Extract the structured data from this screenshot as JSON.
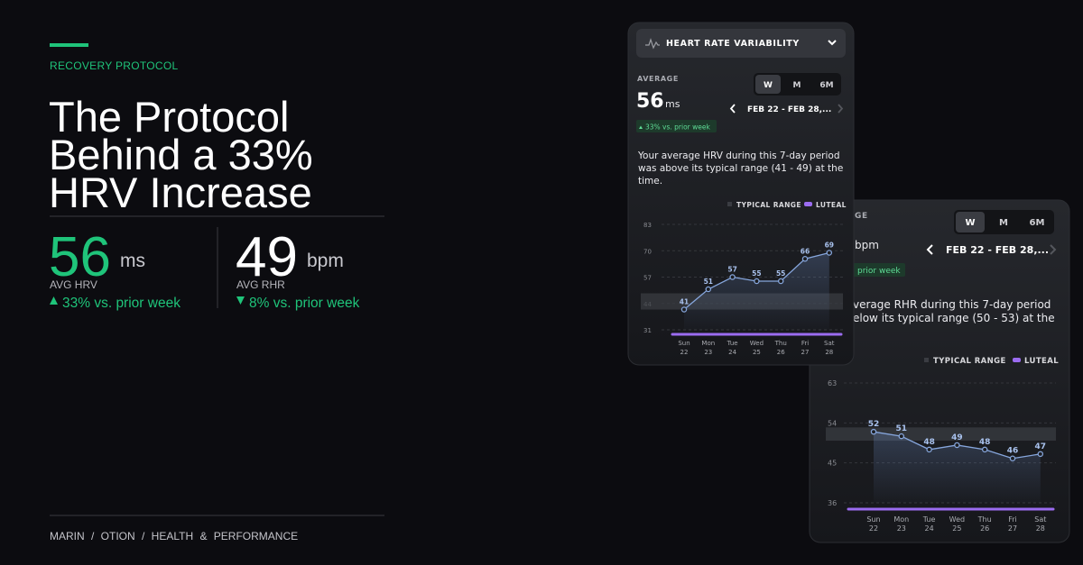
{
  "eyebrow": "RECOVERY PROTOCOL",
  "headline": [
    "The Protocol",
    "Behind a 33%",
    "HRV Increase"
  ],
  "stats": [
    {
      "value": 56,
      "unit": "ms",
      "label": "AVG HRV",
      "change": "33% vs. prior week"
    },
    {
      "value": 49,
      "unit": "bpm",
      "label": "AVG RHR",
      "change": "8% vs. prior week"
    }
  ],
  "footer": "MARIN / OTION / HEALTH & PERFORMANCE",
  "cards": [
    {
      "title": "HEART RATE VARIABILITY",
      "average_label": "AVERAGE",
      "average": 56,
      "unit": "ms",
      "badge": "33% vs. prior week",
      "tabs": [
        "W",
        "M",
        "6M"
      ],
      "date_range": "FEB 22 - FEB 28,...",
      "description": [
        "Your average HRV during this 7-day period",
        "was above its typical range (41 - 49) at the",
        "time."
      ],
      "chart": {
        "type": "line",
        "legend": [
          "TYPICAL RANGE",
          "LUTEAL"
        ],
        "categories": [
          "Sun",
          "Mon",
          "Tue",
          "Wed",
          "Thu",
          "Fri",
          "Sat"
        ],
        "dates": [
          "22",
          "23",
          "24",
          "25",
          "26",
          "27",
          "28"
        ],
        "values": [
          41,
          51,
          57,
          55,
          55,
          66,
          69
        ],
        "color": "#86a6dc",
        "range_color": "#3a3c42",
        "luteal_color": "#9b6cf0",
        "typical_range": [
          41,
          49
        ],
        "ylim": [
          31,
          83
        ],
        "yticks": [
          31,
          44,
          57,
          70,
          83
        ]
      }
    },
    {
      "average_label": "GE",
      "unit": "bpm",
      "badge": "prior week",
      "tabs": [
        "W",
        "M",
        "6M"
      ],
      "date_range": "FEB 22 - FEB 28,...",
      "description": [
        "verage RHR during this 7-day period",
        "elow its typical range (50 - 53) at the"
      ],
      "chart": {
        "type": "line",
        "legend": [
          "TYPICAL RANGE",
          "LUTEAL"
        ],
        "categories": [
          "Sun",
          "Mon",
          "Tue",
          "Wed",
          "Thu",
          "Fri",
          "Sat"
        ],
        "dates": [
          "22",
          "23",
          "24",
          "25",
          "26",
          "27",
          "28"
        ],
        "values": [
          52,
          51,
          48,
          49,
          48,
          46,
          47
        ],
        "color": "#86a6dc",
        "range_color": "#3a3c42",
        "luteal_color": "#9b6cf0",
        "typical_range": [
          50,
          53
        ],
        "ylim": [
          36,
          63
        ],
        "yticks": [
          36,
          45,
          54,
          63
        ]
      }
    }
  ]
}
